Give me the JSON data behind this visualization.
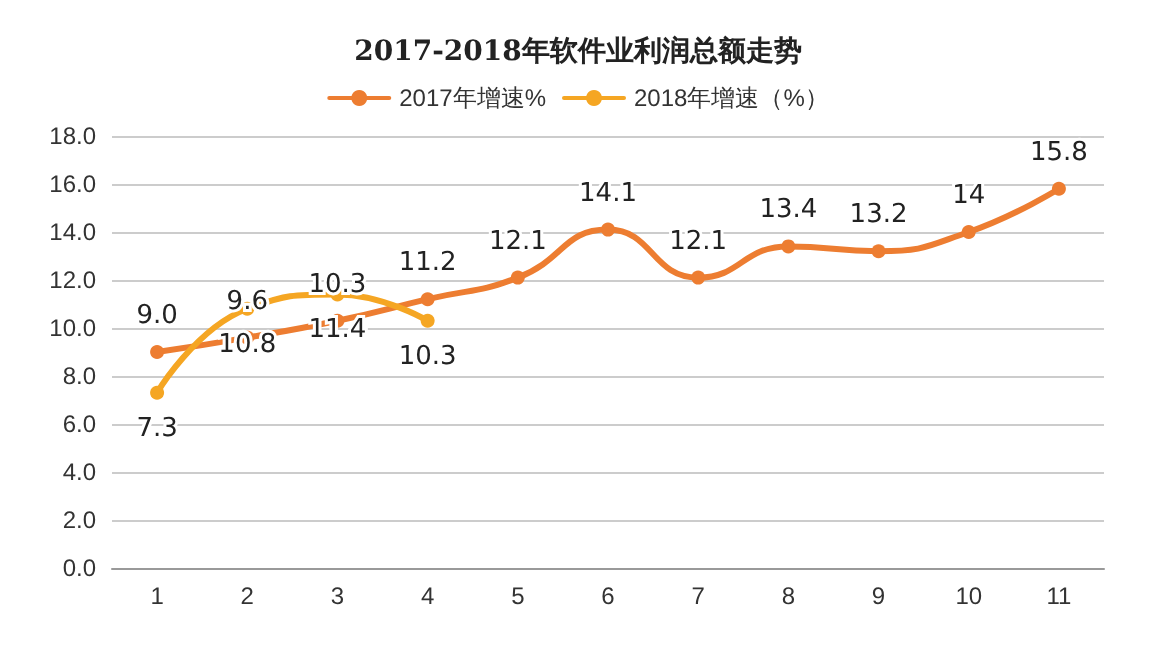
{
  "chart_data": {
    "type": "line",
    "title": "2017-2018年软件业利润总额走势",
    "categories": [
      "1",
      "2",
      "3",
      "4",
      "5",
      "6",
      "7",
      "8",
      "9",
      "10",
      "11"
    ],
    "series": [
      {
        "name": "2017年增速%",
        "color": "#ed7d31",
        "values": [
          9.0,
          9.6,
          10.3,
          11.2,
          12.1,
          14.1,
          12.1,
          13.4,
          13.2,
          14,
          15.8
        ],
        "value_labels": [
          "9.0",
          "9.6",
          "10.3",
          "11.2",
          "12.1",
          "14.1",
          "12.1",
          "13.4",
          "13.2",
          "14",
          "15.8"
        ]
      },
      {
        "name": "2018年增速（%）",
        "color": "#f5a623",
        "values": [
          7.3,
          10.8,
          11.4,
          10.3,
          null,
          null,
          null,
          null,
          null,
          null,
          null
        ],
        "value_labels": [
          "7.3",
          "10.8",
          "11.4",
          "10.3",
          null,
          null,
          null,
          null,
          null,
          null,
          null
        ]
      }
    ],
    "ylim": [
      0,
      18
    ],
    "yticks": [
      {
        "value": 0,
        "label": "0.0"
      },
      {
        "value": 2,
        "label": "2.0"
      },
      {
        "value": 4,
        "label": "4.0"
      },
      {
        "value": 6,
        "label": "6.0"
      },
      {
        "value": 8,
        "label": "8.0"
      },
      {
        "value": 10,
        "label": "10.0"
      },
      {
        "value": 12,
        "label": "12.0"
      },
      {
        "value": 14,
        "label": "14.0"
      },
      {
        "value": 16,
        "label": "16.0"
      },
      {
        "value": 18,
        "label": "18.0"
      }
    ],
    "grid": "y",
    "legend": "top",
    "marker": "circle",
    "line_style": "solid"
  }
}
